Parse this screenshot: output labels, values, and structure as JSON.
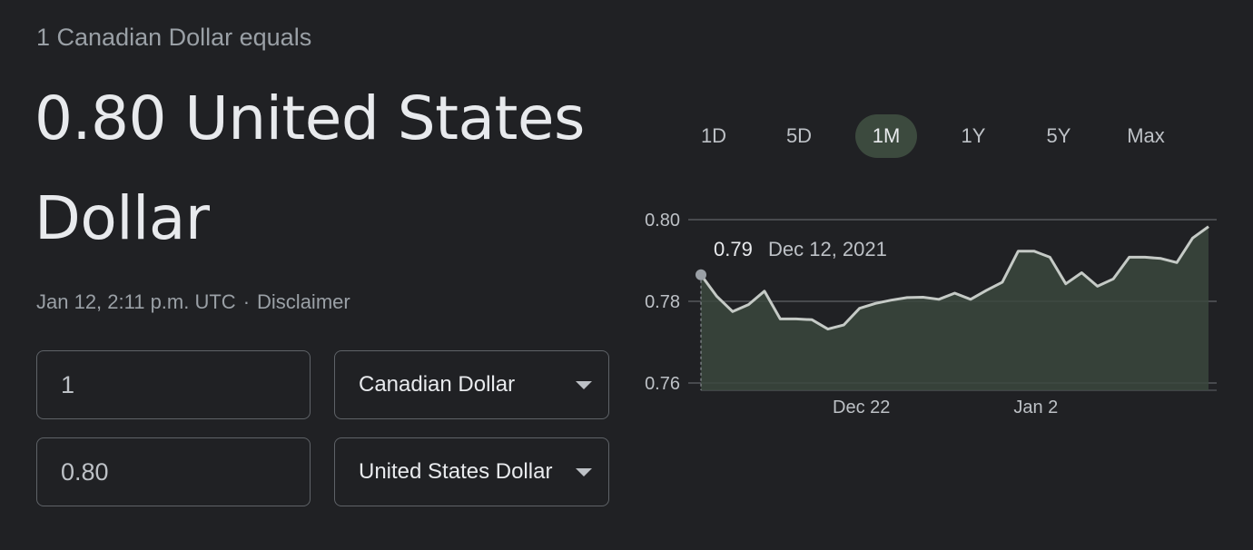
{
  "converter": {
    "subtitle": "1 Canadian Dollar equals",
    "headline": "0.80 United States Dollar",
    "timestamp": "Jan 12, 2:11 p.m. UTC",
    "separator": "·",
    "disclaimer": "Disclaimer",
    "from_amount": "1",
    "from_currency": "Canadian Dollar",
    "to_amount": "0.80",
    "to_currency": "United States Dollar"
  },
  "range_tabs": {
    "items": [
      "1D",
      "5D",
      "1M",
      "1Y",
      "5Y",
      "Max"
    ],
    "selected": "1M"
  },
  "tooltip": {
    "value": "0.79",
    "date": "Dec 12, 2021"
  },
  "colors": {
    "background": "#202124",
    "line": "#c5cac6",
    "area": "#3b463d",
    "active_tab": "#3c4a3e"
  },
  "chart_data": {
    "type": "area",
    "title": "",
    "xlabel": "",
    "ylabel": "",
    "ylim": [
      0.76,
      0.8
    ],
    "yticks": [
      0.8,
      0.78,
      0.76
    ],
    "ytick_labels": [
      "0.80",
      "0.78",
      "0.76"
    ],
    "xtick_labels": [
      {
        "label": "Dec 22",
        "index": 10
      },
      {
        "label": "Jan 2",
        "index": 21
      }
    ],
    "grid": true,
    "values": [
      0.7865,
      0.7812,
      0.7775,
      0.7792,
      0.7825,
      0.7757,
      0.7757,
      0.7755,
      0.7732,
      0.7742,
      0.7783,
      0.7795,
      0.7803,
      0.7809,
      0.781,
      0.7805,
      0.782,
      0.7805,
      0.7827,
      0.7847,
      0.7923,
      0.7923,
      0.7908,
      0.7843,
      0.787,
      0.7837,
      0.7855,
      0.7908,
      0.7908,
      0.7905,
      0.7895,
      0.7955,
      0.7983
    ]
  }
}
